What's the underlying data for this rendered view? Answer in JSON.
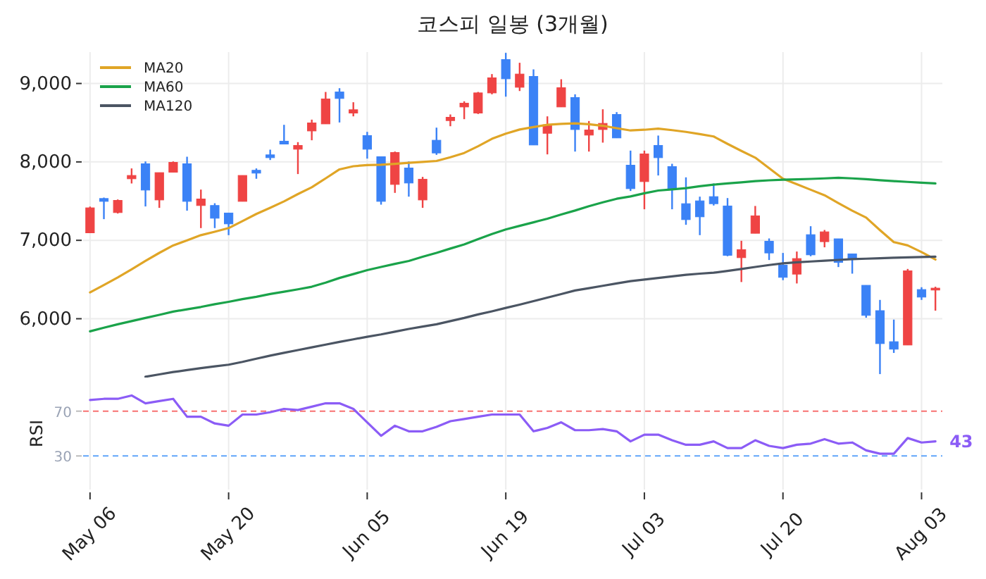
{
  "chart_data": [
    {
      "type": "candlestick",
      "title": "코스피 일봉 (3개월)",
      "categories": [
        null,
        null,
        null,
        null,
        null,
        null,
        null,
        null,
        null,
        null,
        null,
        null,
        null,
        null,
        null,
        null,
        null,
        null,
        null,
        null,
        null,
        null,
        null,
        null,
        null,
        null,
        null,
        null,
        null,
        null,
        null,
        null,
        null,
        null,
        null,
        null,
        null,
        null,
        null,
        null,
        null,
        null,
        null,
        null,
        null,
        null,
        null,
        null,
        null,
        null,
        null,
        null,
        null,
        null,
        null,
        null,
        null,
        null,
        null,
        null,
        null,
        null
      ],
      "ohlc": [
        [
          7096,
          7430,
          7096,
          7414
        ],
        [
          7533,
          7545,
          7270,
          7497
        ],
        [
          7354,
          7521,
          7342,
          7509
        ],
        [
          7785,
          7917,
          7725,
          7827
        ],
        [
          7976,
          8006,
          7432,
          7641
        ],
        [
          7515,
          7863,
          7414,
          7863
        ],
        [
          7869,
          8006,
          7869,
          7994
        ],
        [
          7976,
          8066,
          7378,
          7497
        ],
        [
          7444,
          7647,
          7156,
          7527
        ],
        [
          7444,
          7473,
          7156,
          7282
        ],
        [
          7348,
          7348,
          7066,
          7210
        ],
        [
          7497,
          7827,
          7497,
          7827
        ],
        [
          7893,
          7917,
          7785,
          7857
        ],
        [
          8090,
          8156,
          8024,
          8054
        ],
        [
          8264,
          8473,
          8228,
          8228
        ],
        [
          8162,
          8252,
          7845,
          8210
        ],
        [
          8395,
          8539,
          8276,
          8497
        ],
        [
          8485,
          8892,
          8485,
          8803
        ],
        [
          8892,
          8940,
          8503,
          8809
        ],
        [
          8623,
          8761,
          8581,
          8665
        ],
        [
          8336,
          8383,
          8042,
          8162
        ],
        [
          8066,
          8066,
          7455,
          7497
        ],
        [
          7713,
          8132,
          7605,
          8120
        ],
        [
          7922,
          8006,
          7557,
          7731
        ],
        [
          7515,
          7809,
          7414,
          7779
        ],
        [
          8276,
          8437,
          8090,
          8114
        ],
        [
          8527,
          8605,
          8455,
          8569
        ],
        [
          8701,
          8773,
          8545,
          8749
        ],
        [
          8623,
          8892,
          8611,
          8880
        ],
        [
          8880,
          9120,
          8862,
          9072
        ],
        [
          9305,
          9390,
          8832,
          9060
        ],
        [
          8952,
          9264,
          8904,
          9120
        ],
        [
          9090,
          9180,
          8216,
          8216
        ],
        [
          8365,
          8581,
          8096,
          8473
        ],
        [
          8701,
          9054,
          8701,
          8946
        ],
        [
          8821,
          8862,
          8132,
          8413
        ],
        [
          8342,
          8521,
          8132,
          8407
        ],
        [
          8413,
          8671,
          8246,
          8491
        ],
        [
          8605,
          8635,
          8306,
          8306
        ],
        [
          7958,
          8144,
          7629,
          7659
        ],
        [
          7749,
          8144,
          7396,
          8102
        ],
        [
          8210,
          8336,
          7827,
          8054
        ],
        [
          7940,
          7976,
          7396,
          7659
        ],
        [
          7467,
          7803,
          7198,
          7264
        ],
        [
          7503,
          7557,
          7066,
          7300
        ],
        [
          7557,
          7725,
          7444,
          7467
        ],
        [
          7438,
          7539,
          6797,
          6809
        ],
        [
          6779,
          6994,
          6468,
          6881
        ],
        [
          7090,
          7438,
          7090,
          7312
        ],
        [
          6988,
          7024,
          6749,
          6839
        ],
        [
          6683,
          6839,
          6492,
          6528
        ],
        [
          6569,
          6857,
          6450,
          6767
        ],
        [
          7072,
          7180,
          6797,
          6815
        ],
        [
          6983,
          7132,
          6911,
          7108
        ],
        [
          7019,
          7019,
          6659,
          6719
        ],
        [
          6827,
          6827,
          6575,
          6755
        ],
        [
          6426,
          6426,
          6013,
          6043
        ],
        [
          6103,
          6240,
          5294,
          5683
        ],
        [
          5707,
          5989,
          5564,
          5612
        ],
        [
          5665,
          6635,
          5665,
          6611
        ],
        [
          6372,
          6402,
          6240,
          6276
        ],
        [
          6366,
          6408,
          6103,
          6390
        ]
      ],
      "series": [
        {
          "name": "MA20",
          "type": "line",
          "color": "#e0a526",
          "values": [
            6336,
            6430,
            6527,
            6630,
            6737,
            6840,
            6935,
            7000,
            7066,
            7110,
            7156,
            7245,
            7336,
            7415,
            7497,
            7590,
            7677,
            7790,
            7905,
            7945,
            7960,
            7964,
            7975,
            7988,
            8000,
            8012,
            8060,
            8114,
            8200,
            8294,
            8360,
            8413,
            8445,
            8473,
            8485,
            8491,
            8480,
            8461,
            8430,
            8401,
            8410,
            8425,
            8405,
            8383,
            8355,
            8324,
            8230,
            8140,
            8054,
            7920,
            7785,
            7715,
            7645,
            7575,
            7475,
            7378,
            7290,
            7130,
            6977,
            6935,
            6850,
            6755
          ]
        },
        {
          "name": "MA60",
          "type": "line",
          "color": "#1aa34a",
          "values": [
            5839,
            5885,
            5929,
            5970,
            6010,
            6050,
            6091,
            6120,
            6150,
            6185,
            6216,
            6250,
            6280,
            6315,
            6345,
            6375,
            6408,
            6460,
            6520,
            6569,
            6620,
            6660,
            6700,
            6737,
            6790,
            6840,
            6895,
            6947,
            7015,
            7080,
            7138,
            7185,
            7230,
            7276,
            7330,
            7380,
            7435,
            7485,
            7530,
            7560,
            7600,
            7635,
            7650,
            7665,
            7690,
            7710,
            7725,
            7740,
            7755,
            7765,
            7773,
            7778,
            7783,
            7790,
            7797,
            7790,
            7780,
            7767,
            7755,
            7745,
            7735,
            7725
          ]
        },
        {
          "name": "MA120",
          "type": "line",
          "color": "#4b5563",
          "values": [
            null,
            null,
            null,
            null,
            5260,
            5290,
            5320,
            5345,
            5370,
            5392,
            5414,
            5450,
            5490,
            5530,
            5565,
            5600,
            5635,
            5670,
            5705,
            5737,
            5770,
            5800,
            5835,
            5870,
            5900,
            5929,
            5970,
            6010,
            6055,
            6095,
            6138,
            6180,
            6225,
            6270,
            6315,
            6360,
            6390,
            6420,
            6450,
            6480,
            6500,
            6520,
            6540,
            6560,
            6575,
            6587,
            6610,
            6635,
            6660,
            6685,
            6707,
            6720,
            6730,
            6740,
            6750,
            6761,
            6766,
            6772,
            6778,
            6782,
            6787,
            6791
          ]
        }
      ],
      "ylim": [
        5250,
        9400
      ],
      "yticks": [
        {
          "value": 6000,
          "label": "6,000"
        },
        {
          "value": 7000,
          "label": "7,000"
        },
        {
          "value": 8000,
          "label": "8,000"
        },
        {
          "value": 9000,
          "label": "9,000"
        }
      ],
      "grid": true,
      "legend": "top left",
      "tick_labels": "y"
    },
    {
      "type": "line",
      "ylabel": "RSI",
      "categories": [
        "May 06",
        null,
        null,
        null,
        null,
        null,
        null,
        null,
        null,
        null,
        "May 20",
        null,
        null,
        null,
        null,
        null,
        null,
        null,
        null,
        null,
        "Jun 05",
        null,
        null,
        null,
        null,
        null,
        null,
        null,
        null,
        null,
        "Jun 19",
        null,
        null,
        null,
        null,
        null,
        null,
        null,
        null,
        null,
        "Jul 03",
        null,
        null,
        null,
        null,
        null,
        null,
        null,
        null,
        null,
        "Jul 20",
        null,
        null,
        null,
        null,
        null,
        null,
        null,
        null,
        null,
        "Aug 03",
        null
      ],
      "series": [
        {
          "color": "#8b5cf6",
          "values": [
            80,
            81,
            81,
            84,
            77,
            79,
            81,
            65,
            65,
            59,
            57,
            67,
            67,
            69,
            72,
            71,
            74,
            77,
            77,
            72,
            60,
            48,
            57,
            52,
            52,
            56,
            61,
            63,
            65,
            67,
            67,
            67,
            52,
            55,
            60,
            53,
            53,
            54,
            52,
            43,
            49,
            49,
            44,
            40,
            40,
            43,
            37,
            37,
            44,
            39,
            37,
            40,
            41,
            45,
            41,
            42,
            35,
            32,
            32,
            46,
            42,
            43
          ],
          "value_labels": [
            null,
            null,
            null,
            null,
            null,
            null,
            null,
            null,
            null,
            null,
            null,
            null,
            null,
            null,
            null,
            null,
            null,
            null,
            null,
            null,
            null,
            null,
            null,
            null,
            null,
            null,
            null,
            null,
            null,
            null,
            null,
            null,
            null,
            null,
            null,
            null,
            null,
            null,
            null,
            null,
            null,
            null,
            null,
            null,
            null,
            null,
            null,
            null,
            null,
            null,
            null,
            null,
            null,
            null,
            null,
            null,
            null,
            null,
            null,
            null,
            null,
            "43"
          ]
        }
      ],
      "ylim": [
        0,
        100
      ],
      "yticks": [
        30,
        70
      ],
      "ref_lines": [
        {
          "axis": "y",
          "value": 70,
          "color": "#f87171",
          "line_style": "dashed"
        },
        {
          "axis": "y",
          "value": 30,
          "color": "#60a5fa",
          "line_style": "dashed"
        }
      ],
      "grid": "x"
    }
  ]
}
